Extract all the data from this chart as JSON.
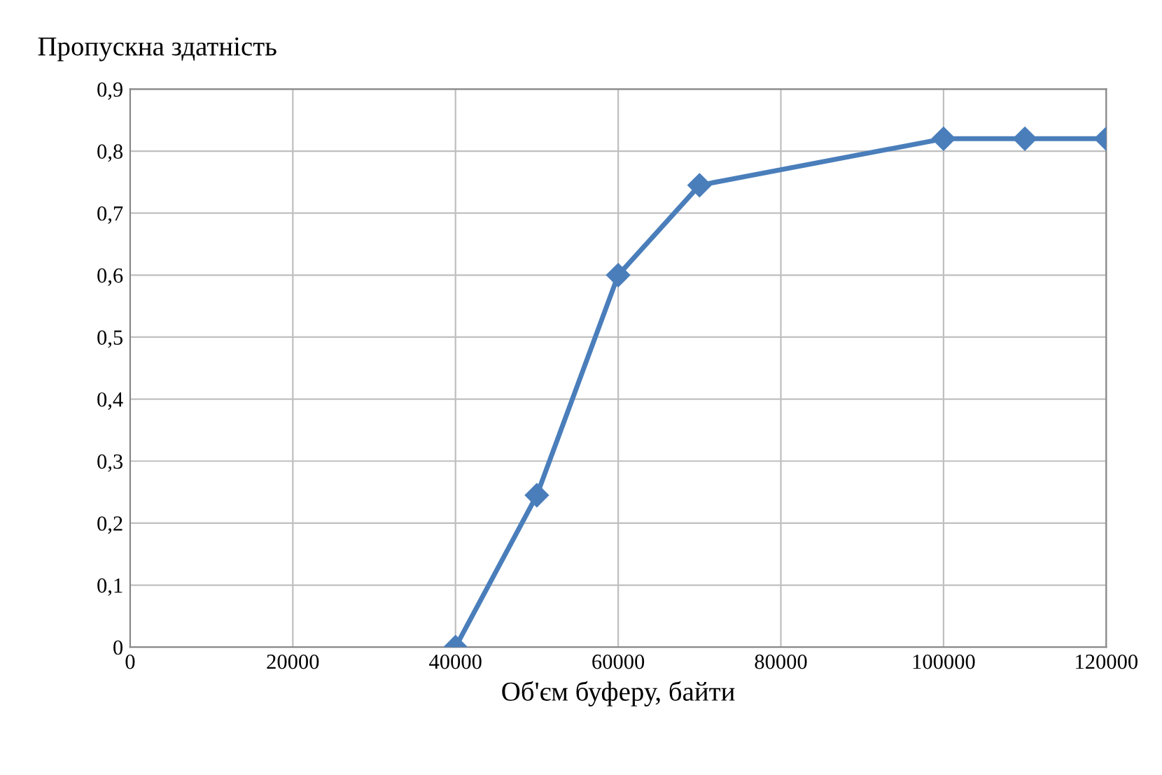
{
  "chart_data": {
    "type": "line",
    "ylabel": "Пропускна здатність",
    "xlabel": "Об'єм буферу, байти",
    "x": [
      40000,
      50000,
      60000,
      70000,
      100000,
      110000,
      120000
    ],
    "series": [
      {
        "color": "#4a7ebb",
        "values": [
          0,
          0.245,
          0.6,
          0.745,
          0.82,
          0.82,
          0.82
        ]
      }
    ],
    "xlim": [
      0,
      120000
    ],
    "xticks": [
      0,
      20000,
      40000,
      60000,
      80000,
      100000,
      120000
    ],
    "ylim": [
      0,
      0.9
    ],
    "yticks": [
      {
        "value": 0,
        "label": "0"
      },
      {
        "value": 0.1,
        "label": "0,1"
      },
      {
        "value": 0.2,
        "label": "0,2"
      },
      {
        "value": 0.3,
        "label": "0,3"
      },
      {
        "value": 0.4,
        "label": "0,4"
      },
      {
        "value": 0.5,
        "label": "0,5"
      },
      {
        "value": 0.6,
        "label": "0,6"
      },
      {
        "value": 0.7,
        "label": "0,7"
      },
      {
        "value": 0.8,
        "label": "0,8"
      },
      {
        "value": 0.9,
        "label": "0,9"
      }
    ],
    "grid": true,
    "marker": "diamond",
    "line_style": "solid",
    "legend": false
  }
}
